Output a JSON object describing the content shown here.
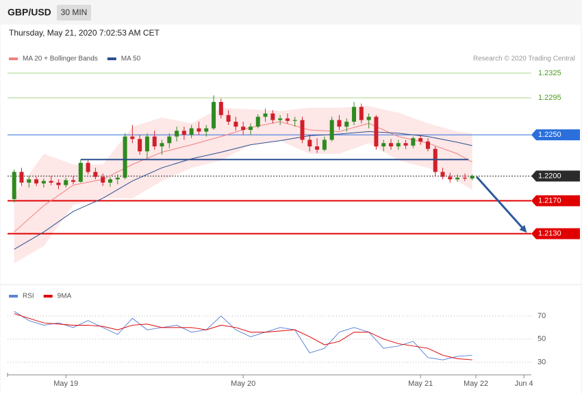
{
  "header": {
    "symbol": "GBP/USD",
    "interval": "30 MIN",
    "timestamp": "Thursday, May 21, 2020 7:02:53 AM CET"
  },
  "chart_data": [
    {
      "type": "candlestick",
      "credit": "Research © 2020 Trading Central",
      "up_color": "#2f8a1f",
      "down_color": "#d0202a",
      "xlim": [
        -7.9,
        63
      ],
      "ylim": [
        1.2069,
        1.2364
      ],
      "x": [
        -7,
        -6,
        -5,
        -4,
        -3,
        -2,
        -1,
        0,
        1,
        2,
        3,
        4,
        5,
        6,
        7,
        8,
        9,
        10,
        11,
        12,
        13,
        14,
        15,
        16,
        17,
        18,
        19,
        20,
        21,
        22,
        23,
        24,
        25,
        26,
        27,
        28,
        29,
        30,
        31,
        32,
        33,
        34,
        35,
        36,
        37,
        38,
        39,
        40,
        41,
        42,
        43,
        44,
        45,
        46,
        47,
        48,
        49,
        50,
        51,
        52,
        53,
        54,
        55
      ],
      "open": [
        1.2172,
        1.2205,
        1.2192,
        1.2196,
        1.2191,
        1.2194,
        1.2192,
        1.2189,
        1.2195,
        1.2193,
        1.2216,
        1.2205,
        1.2199,
        1.2192,
        1.2196,
        1.2198,
        1.2248,
        1.2245,
        1.223,
        1.2248,
        1.2236,
        1.224,
        1.2248,
        1.2255,
        1.225,
        1.2258,
        1.2254,
        1.2258,
        1.229,
        1.2274,
        1.2266,
        1.226,
        1.2256,
        1.226,
        1.2272,
        1.2276,
        1.2268,
        1.227,
        1.2267,
        1.2268,
        1.2244,
        1.2236,
        1.2232,
        1.2244,
        1.2268,
        1.226,
        1.2266,
        1.2284,
        1.2268,
        1.2272,
        1.2236,
        1.224,
        1.2236,
        1.224,
        1.2237,
        1.2246,
        1.2242,
        1.2233,
        1.2205,
        1.2199,
        1.2196,
        1.2198,
        1.2197
      ],
      "high": [
        1.2208,
        1.221,
        1.22,
        1.2199,
        1.2197,
        1.22,
        1.2196,
        1.2198,
        1.22,
        1.222,
        1.2219,
        1.221,
        1.2203,
        1.2199,
        1.2202,
        1.2252,
        1.2262,
        1.225,
        1.2252,
        1.2255,
        1.2244,
        1.2252,
        1.226,
        1.226,
        1.2262,
        1.2266,
        1.2262,
        1.2298,
        1.2294,
        1.228,
        1.2272,
        1.2266,
        1.2264,
        1.2275,
        1.2282,
        1.228,
        1.2274,
        1.2276,
        1.2272,
        1.2272,
        1.225,
        1.2246,
        1.2248,
        1.2272,
        1.2274,
        1.227,
        1.229,
        1.2288,
        1.2276,
        1.2274,
        1.2244,
        1.2245,
        1.2244,
        1.2244,
        1.2248,
        1.225,
        1.2246,
        1.2236,
        1.221,
        1.2204,
        1.2202,
        1.2203,
        1.2202
      ],
      "low": [
        1.2168,
        1.2188,
        1.2186,
        1.2188,
        1.2186,
        1.2189,
        1.2184,
        1.2186,
        1.219,
        1.2192,
        1.2202,
        1.2196,
        1.2188,
        1.2187,
        1.219,
        1.2196,
        1.224,
        1.2226,
        1.2222,
        1.2232,
        1.2226,
        1.2234,
        1.2242,
        1.2244,
        1.2246,
        1.225,
        1.2248,
        1.2256,
        1.227,
        1.2262,
        1.2255,
        1.225,
        1.225,
        1.2258,
        1.2266,
        1.2264,
        1.2262,
        1.2264,
        1.226,
        1.224,
        1.223,
        1.2228,
        1.223,
        1.2242,
        1.2256,
        1.2254,
        1.2262,
        1.2264,
        1.2258,
        1.2232,
        1.223,
        1.2232,
        1.2232,
        1.2233,
        1.2234,
        1.2238,
        1.223,
        1.22,
        1.2196,
        1.2192,
        1.2193,
        1.2194,
        1.2195
      ],
      "close": [
        1.2205,
        1.2192,
        1.2196,
        1.2191,
        1.2194,
        1.2192,
        1.2189,
        1.2195,
        1.2193,
        1.2216,
        1.2205,
        1.2199,
        1.2192,
        1.2196,
        1.2198,
        1.2248,
        1.2245,
        1.223,
        1.2248,
        1.2236,
        1.224,
        1.2248,
        1.2255,
        1.225,
        1.2258,
        1.2254,
        1.2258,
        1.229,
        1.2274,
        1.2266,
        1.226,
        1.2256,
        1.226,
        1.2272,
        1.2276,
        1.2268,
        1.227,
        1.2267,
        1.2268,
        1.2244,
        1.2236,
        1.2232,
        1.2244,
        1.2268,
        1.226,
        1.2266,
        1.2284,
        1.2268,
        1.2272,
        1.2236,
        1.224,
        1.2236,
        1.224,
        1.2237,
        1.2246,
        1.2242,
        1.2233,
        1.2205,
        1.2199,
        1.2196,
        1.2198,
        1.2197,
        1.22
      ],
      "series": [
        {
          "name": "MA 20 + Bollinger Bands",
          "color": "#f08080",
          "band_color": "#fde3e3",
          "x": [
            -7,
            -3,
            1,
            5,
            9,
            13,
            17,
            21,
            25,
            29,
            33,
            37,
            41,
            45,
            49,
            53,
            55
          ],
          "values": [
            1.2132,
            1.2164,
            1.2189,
            1.2196,
            1.2214,
            1.2229,
            1.2238,
            1.2248,
            1.2259,
            1.2266,
            1.2256,
            1.2254,
            1.2264,
            1.2248,
            1.224,
            1.2227,
            1.2217
          ],
          "upper": [
            1.2177,
            1.2227,
            1.2214,
            1.2214,
            1.226,
            1.2271,
            1.2264,
            1.2283,
            1.2281,
            1.2279,
            1.2283,
            1.2283,
            1.2285,
            1.2277,
            1.2264,
            1.2254,
            1.2252
          ],
          "lower": [
            1.2094,
            1.2115,
            1.2165,
            1.2173,
            1.2173,
            1.2194,
            1.221,
            1.2219,
            1.2238,
            1.2243,
            1.2227,
            1.2227,
            1.224,
            1.2219,
            1.221,
            1.2194,
            1.2183
          ]
        },
        {
          "name": "MA 50",
          "color": "#2a4f8f",
          "x": [
            -7,
            -3,
            1,
            5,
            9,
            13,
            17,
            21,
            25,
            29,
            33,
            37,
            41,
            45,
            49,
            53,
            55
          ],
          "values": [
            1.2111,
            1.2132,
            1.2157,
            1.2173,
            1.2194,
            1.221,
            1.2221,
            1.2229,
            1.2238,
            1.2243,
            1.2249,
            1.2251,
            1.2254,
            1.2252,
            1.2248,
            1.2241,
            1.2237
          ]
        }
      ],
      "levels": [
        {
          "value": 1.2325,
          "color": "#a8d68a",
          "boxed": false,
          "width": 1,
          "dashed": false
        },
        {
          "value": 1.2295,
          "color": "#a8d68a",
          "boxed": false,
          "width": 1,
          "dashed": false
        },
        {
          "value": 1.225,
          "label": "1.2250",
          "color": "#2a6fdb",
          "boxed": true,
          "width": 1,
          "dashed": false
        },
        {
          "value": 1.22,
          "label": "1.2200",
          "color": "#2b2b2b",
          "boxed": true,
          "width": 1,
          "dashed": true
        },
        {
          "value": 1.217,
          "label": "1.2170",
          "color": "#e00000",
          "boxed": true,
          "width": 2,
          "dashed": false
        },
        {
          "value": 1.213,
          "label": "1.2130",
          "color": "#e00000",
          "boxed": true,
          "width": 2,
          "dashed": false
        }
      ],
      "trendline": {
        "color": "#2a4f8f",
        "x": [
          2,
          54.5
        ],
        "values": [
          1.222,
          1.222
        ]
      },
      "arrow": {
        "color": "#2e5a9a",
        "x": [
          55.6,
          62.4
        ],
        "values": [
          1.2199,
          1.2131
        ]
      }
    },
    {
      "type": "line",
      "xlim": [
        -7.9,
        63
      ],
      "ylim": [
        19,
        83
      ],
      "yticks": [
        30,
        50,
        70
      ],
      "xticks": [
        {
          "value": 0,
          "label": "May 19"
        },
        {
          "value": 24,
          "label": "May 20"
        },
        {
          "value": 48,
          "label": "May 21"
        },
        {
          "value": 55.5,
          "label": "May 22"
        },
        {
          "value": 62,
          "label": "Jun 4"
        }
      ],
      "series": [
        {
          "name": "RSI",
          "color": "#5b84d6",
          "x": [
            -7,
            -5,
            -3,
            -1,
            1,
            3,
            5,
            7,
            9,
            11,
            13,
            15,
            17,
            19,
            21,
            23,
            25,
            27,
            29,
            31,
            33,
            35,
            37,
            39,
            41,
            43,
            45,
            47,
            49,
            51,
            53,
            55
          ],
          "values": [
            74,
            66,
            62,
            64,
            60,
            66,
            60,
            54,
            68,
            58,
            60,
            62,
            56,
            58,
            70,
            58,
            52,
            56,
            60,
            58,
            38,
            42,
            56,
            60,
            56,
            42,
            44,
            48,
            34,
            32,
            35,
            36
          ]
        },
        {
          "name": "9MA",
          "color": "#e00000",
          "x": [
            -7,
            -5,
            -3,
            -1,
            1,
            3,
            5,
            7,
            9,
            11,
            13,
            15,
            17,
            19,
            21,
            23,
            25,
            27,
            29,
            31,
            33,
            35,
            37,
            39,
            41,
            43,
            45,
            47,
            49,
            51,
            53,
            55
          ],
          "values": [
            72,
            68,
            64,
            63,
            62,
            62,
            61,
            58,
            62,
            63,
            60,
            60,
            60,
            58,
            62,
            60,
            56,
            56,
            57,
            58,
            52,
            45,
            48,
            56,
            56,
            50,
            46,
            44,
            42,
            36,
            33,
            32
          ]
        }
      ]
    }
  ]
}
